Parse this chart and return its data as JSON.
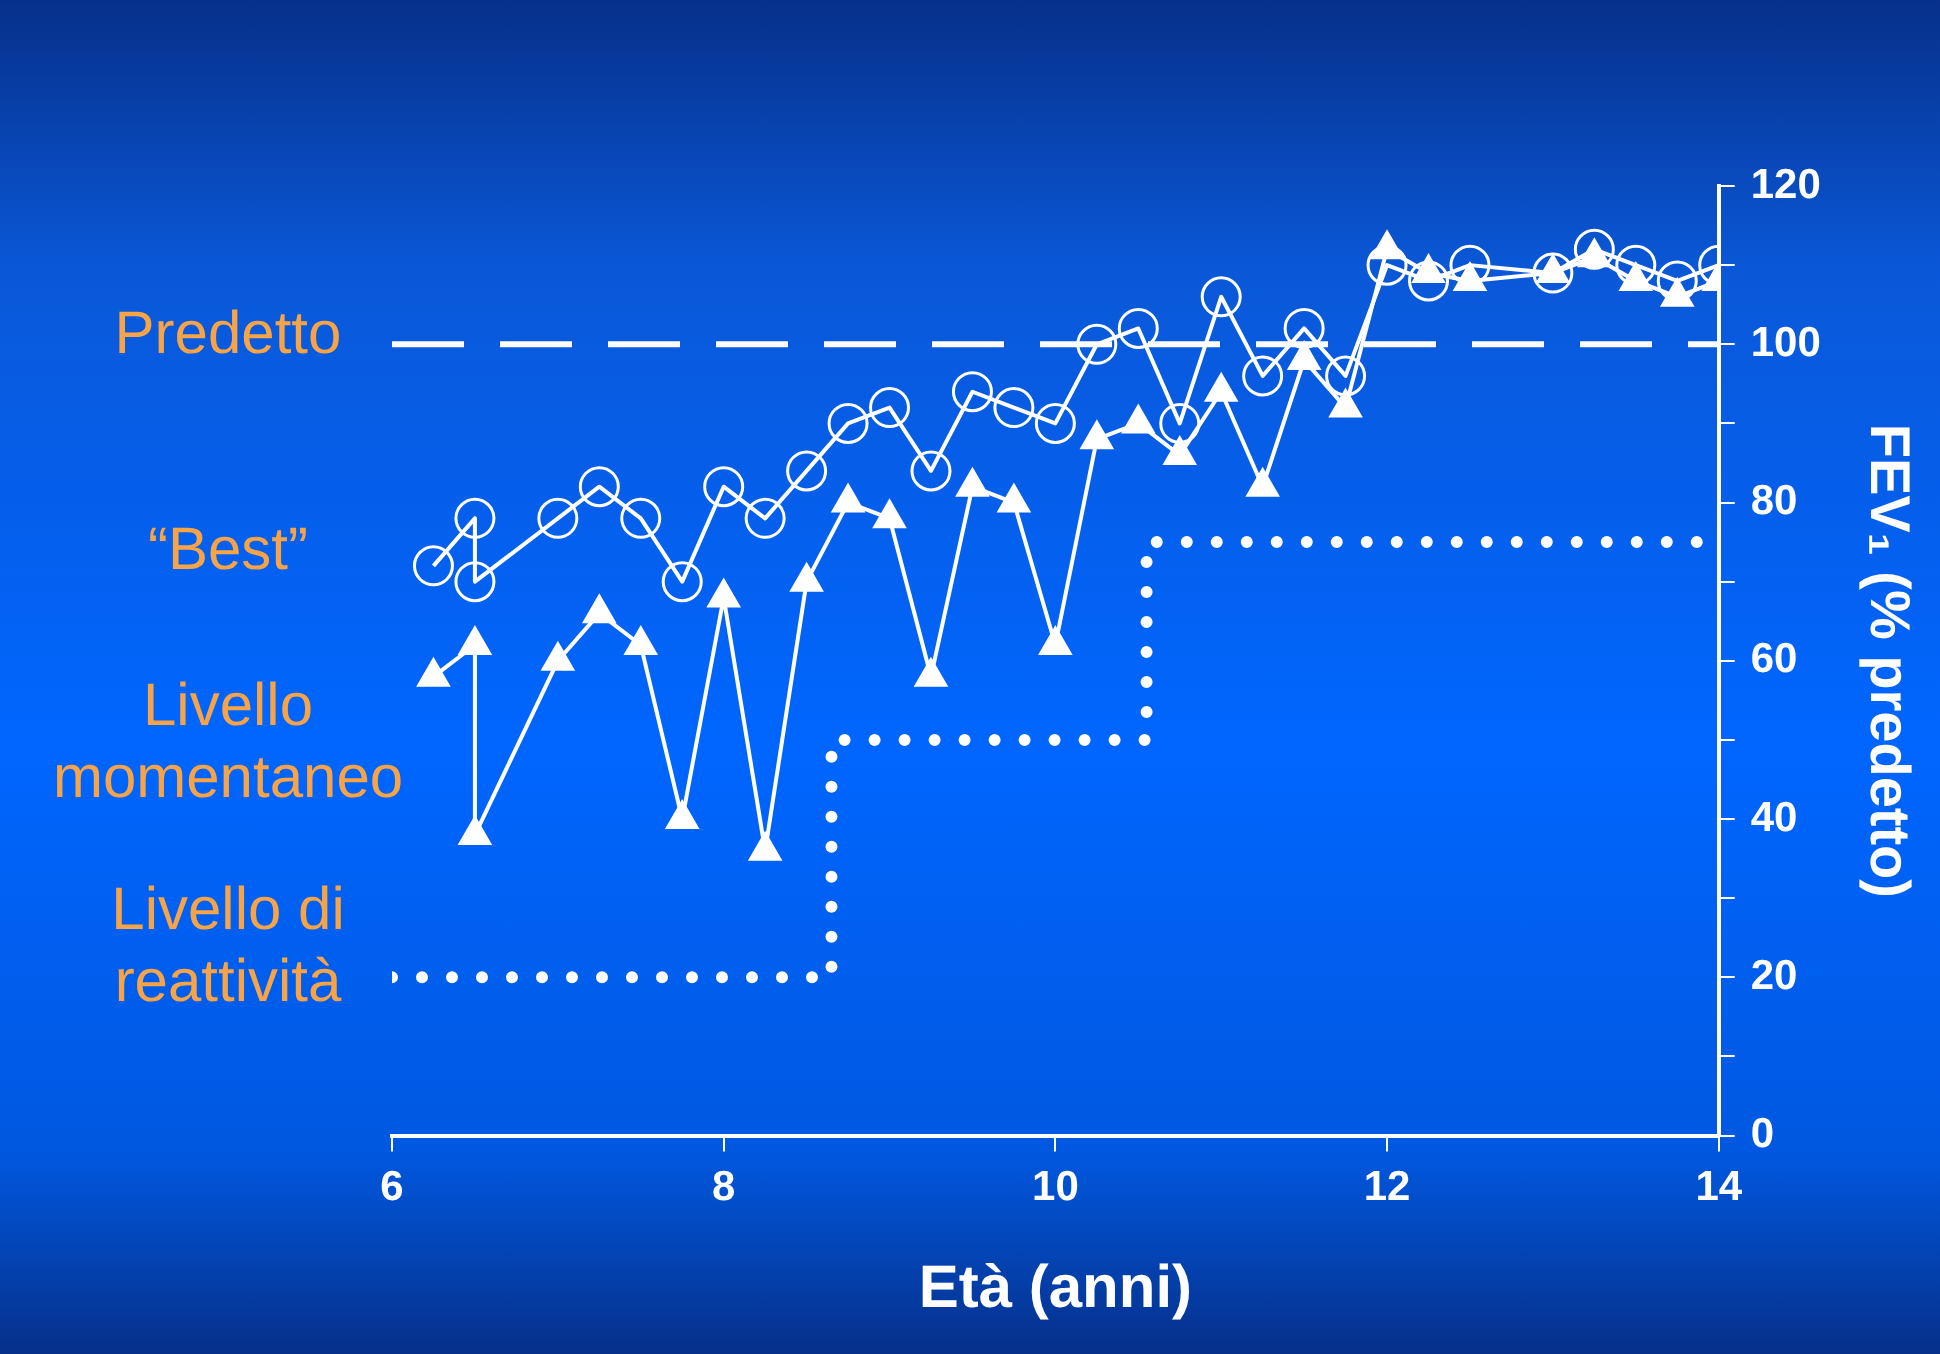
{
  "chart_data": {
    "type": "line",
    "xlabel": "Età (anni)",
    "ylabel": "FEV₁ (% predetto)",
    "xlim": [
      6,
      14
    ],
    "xticks": [
      6,
      8,
      10,
      12,
      14
    ],
    "ylim": [
      0,
      120
    ],
    "yticks": [
      0,
      {
        "value": 10,
        "label": null
      },
      20,
      {
        "value": 30,
        "label": null
      },
      40,
      {
        "value": 50,
        "label": null
      },
      60,
      {
        "value": 70,
        "label": null
      },
      80,
      {
        "value": 90,
        "label": null
      },
      100,
      {
        "value": 110,
        "label": null
      },
      120
    ],
    "grid": false,
    "legend": false,
    "series": [
      {
        "name": "“Best”",
        "color": "#ffffff",
        "marker": "circle",
        "line_style": "solid",
        "x": [
          6.25,
          6.5,
          6.5,
          7,
          7.25,
          7.5,
          7.75,
          8,
          8.25,
          8.5,
          8.75,
          9,
          9.25,
          9.5,
          9.75,
          10,
          10.25,
          10.5,
          10.75,
          11,
          11.25,
          11.5,
          11.75,
          12,
          12.25,
          12.5,
          13,
          13.25,
          13.5,
          13.75,
          14
        ],
        "values": [
          72,
          78,
          70,
          78,
          82,
          78,
          70,
          82,
          78,
          84,
          90,
          92,
          84,
          94,
          92,
          90,
          100,
          102,
          90,
          106,
          96,
          102,
          96,
          110,
          108,
          110,
          109,
          112,
          110,
          108,
          110
        ]
      },
      {
        "name": "Livello momentaneo",
        "color": "#ffffff",
        "marker": "triangle",
        "line_style": "solid",
        "x": [
          6.25,
          6.5,
          6.5,
          7,
          7.25,
          7.5,
          7.75,
          8,
          8.25,
          8.5,
          8.75,
          9,
          9.25,
          9.5,
          9.75,
          10,
          10.25,
          10.5,
          10.75,
          11,
          11.25,
          11.5,
          11.75,
          12,
          12.25,
          12.5,
          13,
          13.25,
          13.5,
          13.75,
          14
        ],
        "values": [
          58,
          62,
          38,
          60,
          66,
          62,
          40,
          68,
          36,
          70,
          80,
          78,
          58,
          82,
          80,
          62,
          88,
          90,
          86,
          94,
          82,
          98,
          92,
          112,
          109,
          108,
          109,
          111,
          108,
          106,
          108
        ]
      },
      {
        "name": "Livello di reattività",
        "color": "#ffffff",
        "marker": "none",
        "line_style": "dotted",
        "x": [
          6,
          8.65,
          8.65,
          10.55,
          10.55,
          14
        ],
        "values": [
          20,
          20,
          50,
          50,
          75,
          75
        ]
      }
    ],
    "ref_lines": [
      {
        "axis": "y",
        "value": 100,
        "label": "Predetto",
        "color": "#ffffff",
        "line_style": "dashed"
      }
    ]
  }
}
